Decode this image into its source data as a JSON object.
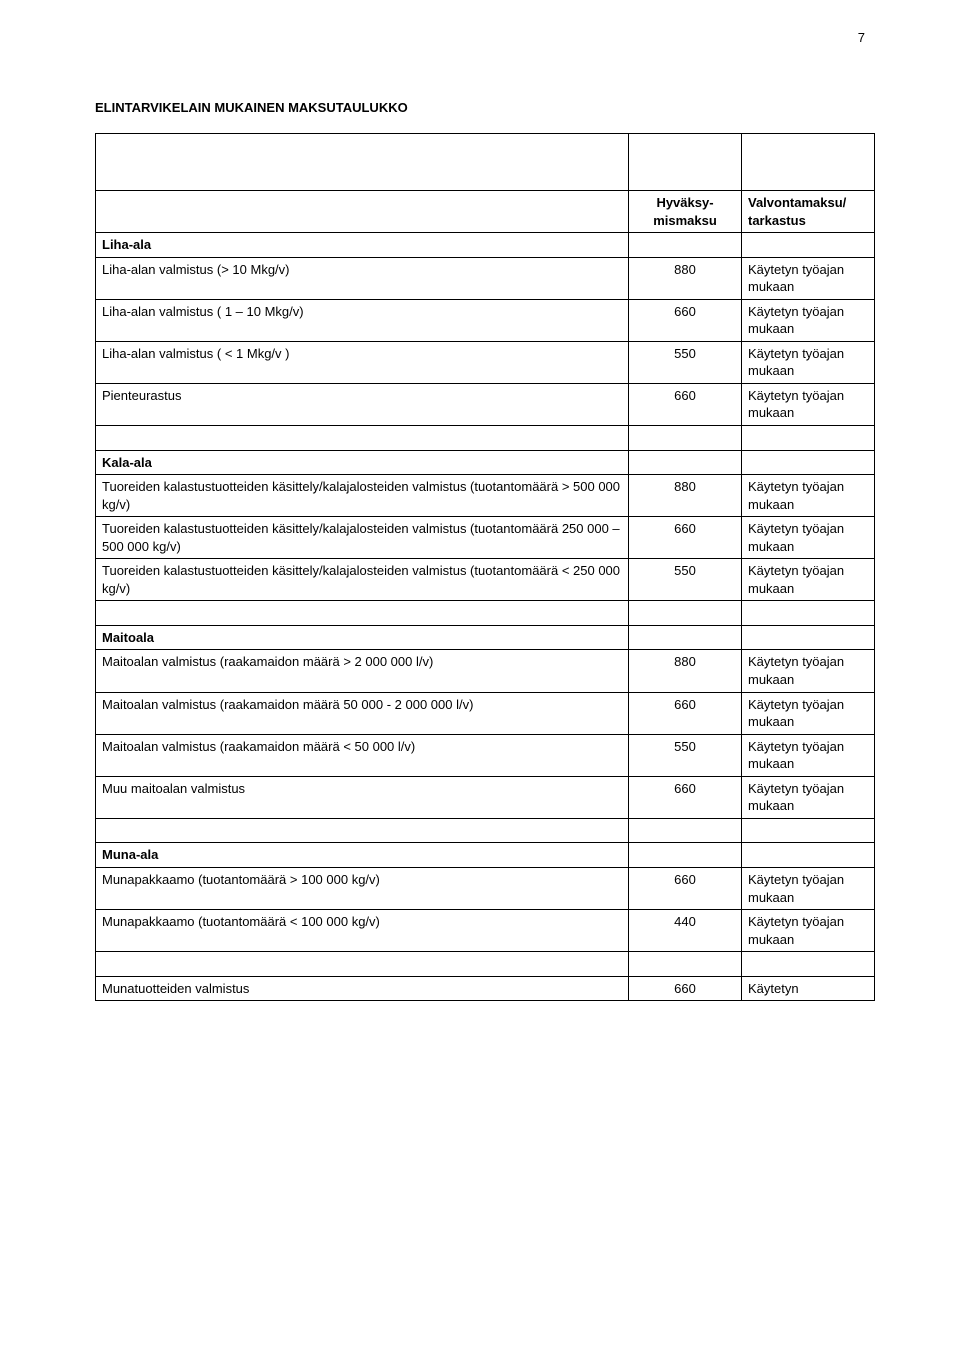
{
  "page_number": "7",
  "title": "ELINTARVIKELAIN MUKAINEN MAKSUTAULUKKO",
  "header": {
    "col2": "Hyväksy-mismaksu",
    "col3": "Valvontamaksu/ tarkastus"
  },
  "sections": {
    "liha": {
      "name": "Liha-ala",
      "rows": [
        {
          "label": "Liha-alan valmistus (> 10 Mkg/v)",
          "val": "880",
          "note": "Käytetyn työajan mukaan"
        },
        {
          "label": "Liha-alan valmistus ( 1 – 10 Mkg/v)",
          "val": "660",
          "note": "Käytetyn työajan mukaan"
        },
        {
          "label": "Liha-alan valmistus ( < 1 Mkg/v )",
          "val": "550",
          "note": "Käytetyn työajan mukaan"
        },
        {
          "label": "Pienteurastus",
          "val": "660",
          "note": "Käytetyn työajan mukaan"
        }
      ]
    },
    "kala": {
      "name": "Kala-ala",
      "rows": [
        {
          "label": "Tuoreiden kalastustuotteiden käsittely/kalajalosteiden valmistus (tuotantomäärä > 500 000 kg/v)",
          "val": "880",
          "note": "Käytetyn työajan mukaan"
        },
        {
          "label": " Tuoreiden kalastustuotteiden käsittely/kalajalosteiden valmistus (tuotantomäärä 250 000 – 500 000 kg/v)",
          "val": "660",
          "note": "Käytetyn työajan mukaan"
        },
        {
          "label": "Tuoreiden kalastustuotteiden käsittely/kalajalosteiden valmistus (tuotantomäärä < 250 000 kg/v)",
          "val": "550",
          "note": "Käytetyn työajan mukaan"
        }
      ]
    },
    "maito": {
      "name": "Maitoala",
      "rows": [
        {
          "label": "Maitoalan valmistus (raakamaidon määrä > 2 000 000 l/v)",
          "val": "880",
          "note": "Käytetyn työajan mukaan"
        },
        {
          "label": "Maitoalan valmistus (raakamaidon määrä 50 000 - 2 000 000 l/v)",
          "val": "660",
          "note": "Käytetyn työajan mukaan"
        },
        {
          "label": "Maitoalan valmistus (raakamaidon määrä < 50 000 l/v)",
          "val": "550",
          "note": "Käytetyn työajan mukaan"
        },
        {
          "label": "Muu maitoalan valmistus",
          "val": "660",
          "note": "Käytetyn työajan mukaan"
        }
      ]
    },
    "muna": {
      "name": "Muna-ala",
      "rows": [
        {
          "label": "Munapakkaamo (tuotantomäärä > 100 000 kg/v)",
          "val": "660",
          "note": "Käytetyn työajan mukaan"
        },
        {
          "label": "Munapakkaamo (tuotantomäärä < 100 000 kg/v)",
          "val": "440",
          "note": "Käytetyn työajan mukaan"
        }
      ],
      "last": {
        "label": "Munatuotteiden valmistus",
        "val": "660",
        "note": "Käytetyn"
      }
    }
  }
}
